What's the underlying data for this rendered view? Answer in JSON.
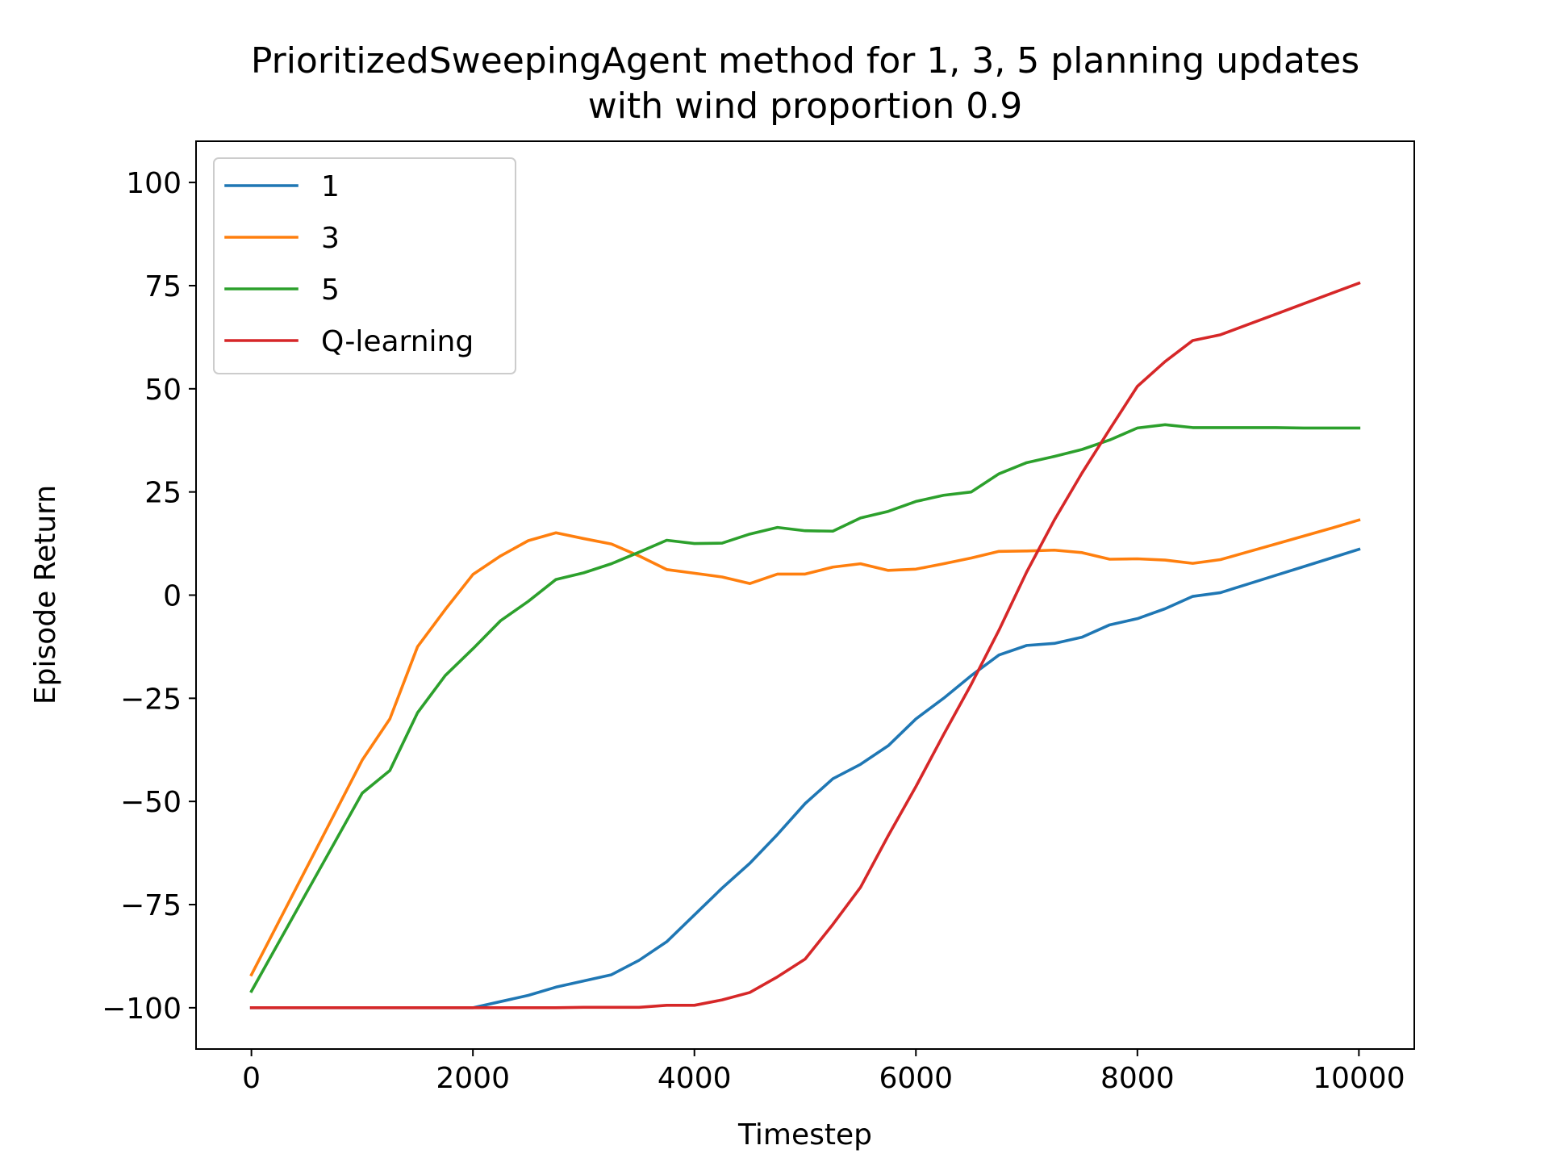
{
  "chart_data": {
    "type": "line",
    "title_line1": "PrioritizedSweepingAgent method for 1, 3, 5 planning updates",
    "title_line2": "with wind proportion 0.9",
    "xlabel": "Timestep",
    "ylabel": "Episode Return",
    "xlim": [
      -500,
      10500
    ],
    "ylim": [
      -110,
      110
    ],
    "xticks": [
      0,
      2000,
      4000,
      6000,
      8000,
      10000
    ],
    "xtick_labels": [
      "0",
      "2000",
      "4000",
      "6000",
      "8000",
      "10000"
    ],
    "yticks": [
      -100,
      -75,
      -50,
      -25,
      0,
      25,
      50,
      75,
      100
    ],
    "ytick_labels": [
      "−100",
      "−75",
      "−50",
      "−25",
      "0",
      "25",
      "50",
      "75",
      "100"
    ],
    "grid": false,
    "legend_position": "top-left",
    "x": [
      0,
      250,
      500,
      750,
      1000,
      1250,
      1500,
      1750,
      2000,
      2250,
      2500,
      2750,
      3000,
      3250,
      3500,
      3750,
      4000,
      4250,
      4500,
      4750,
      5000,
      5250,
      5500,
      5750,
      6000,
      6250,
      6500,
      6750,
      7000,
      7250,
      7500,
      7750,
      8000,
      8250,
      8500,
      8750,
      9000,
      9250,
      9500,
      9750,
      10000
    ],
    "series": [
      {
        "name": "1",
        "color": "#1f77b4",
        "values": [
          -100,
          -100,
          -100,
          -100,
          -100,
          -100,
          -100,
          -100,
          -100,
          -98.5,
          -97,
          -95,
          -93.5,
          -92,
          -88.5,
          -84,
          -77.5,
          -71,
          -65,
          -58,
          -50.5,
          -44.5,
          -41,
          -36.5,
          -30,
          -25,
          -19.5,
          -14.5,
          -12.2,
          -11.7,
          -10.2,
          -7.2,
          -5.7,
          -3.3,
          -0.3,
          0.6,
          2.7,
          4.8,
          6.9,
          9,
          11.1
        ]
      },
      {
        "name": "3",
        "color": "#ff7f0e",
        "values": [
          -92,
          -79,
          -66,
          -53,
          -40,
          -30,
          -12.5,
          -3.5,
          5,
          9.5,
          13.2,
          15.1,
          13.7,
          12.4,
          9.5,
          6.2,
          5.3,
          4.4,
          2.8,
          5.1,
          5.1,
          6.8,
          7.6,
          6,
          6.3,
          7.6,
          9,
          10.6,
          10.7,
          10.9,
          10.3,
          8.7,
          8.8,
          8.5,
          7.7,
          8.6,
          10.5,
          12.4,
          14.3,
          16.2,
          18.2
        ]
      },
      {
        "name": "5",
        "color": "#2ca02c",
        "values": [
          -96,
          -84,
          -72,
          -60,
          -48,
          -42.5,
          -28.5,
          -19.5,
          -13,
          -6.2,
          -1.5,
          3.8,
          5.4,
          7.6,
          10.4,
          13.3,
          12.5,
          12.6,
          14.8,
          16.4,
          15.6,
          15.5,
          18.7,
          20.3,
          22.7,
          24.2,
          25,
          29.4,
          32.1,
          33.6,
          35.3,
          37.6,
          40.5,
          41.3,
          40.6,
          40.6,
          40.6,
          40.6,
          40.5,
          40.5,
          40.5
        ]
      },
      {
        "name": "Q-learning",
        "color": "#d62728",
        "values": [
          -100,
          -100,
          -100,
          -100,
          -100,
          -100,
          -100,
          -100,
          -100,
          -100,
          -100,
          -100,
          -99.9,
          -99.9,
          -99.9,
          -99.4,
          -99.4,
          -98.1,
          -96.3,
          -92.5,
          -88.2,
          -79.8,
          -70.8,
          -58.3,
          -46.4,
          -33.8,
          -21.6,
          -8.5,
          5.6,
          18.2,
          29.6,
          40.2,
          50.6,
          56.6,
          61.7,
          63.1,
          65.6,
          68.1,
          70.6,
          73.1,
          75.6
        ]
      }
    ]
  }
}
